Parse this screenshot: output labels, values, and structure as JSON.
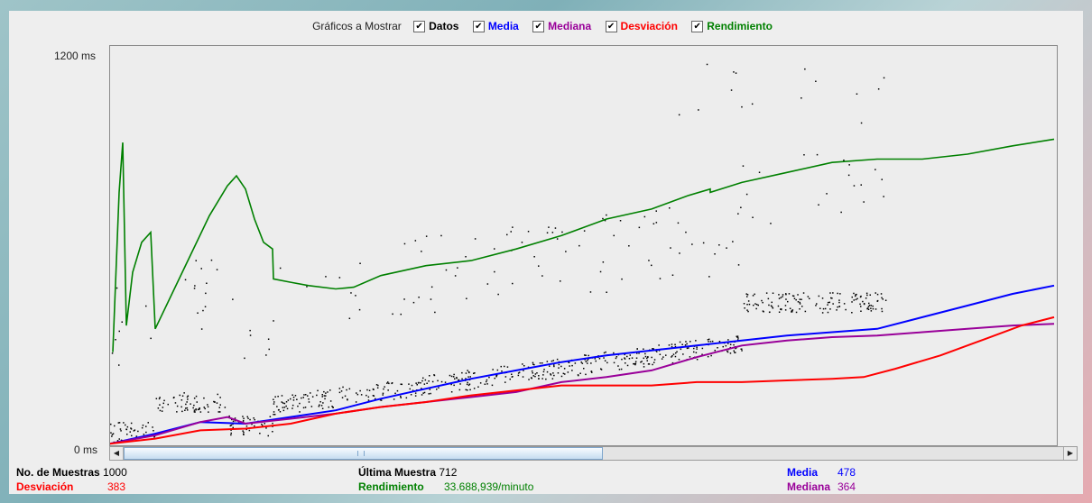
{
  "legend": {
    "title": "Gráficos a Mostrar",
    "items": [
      {
        "label": "Datos",
        "color": "#000000",
        "checked": true
      },
      {
        "label": "Media",
        "color": "#0000ff",
        "checked": true
      },
      {
        "label": "Mediana",
        "color": "#990099",
        "checked": true
      },
      {
        "label": "Desviación",
        "color": "#ff0000",
        "checked": true
      },
      {
        "label": "Rendimiento",
        "color": "#008000",
        "checked": true
      }
    ]
  },
  "axis": {
    "y_max_label": "1200  ms",
    "y_min_label": "0  ms"
  },
  "stats": {
    "samples_label": "No. de Muestras",
    "samples_value": "1000",
    "last_label": "Última Muestra",
    "last_value": "712",
    "mean_label": "Media",
    "mean_value": "478",
    "dev_label": "Desviación",
    "dev_value": "383",
    "throughput_label": "Rendimiento",
    "throughput_value": "33.688,939/minuto",
    "median_label": "Mediana",
    "median_value": "364"
  },
  "chart_data": {
    "type": "line",
    "ylim": [
      0,
      1200
    ],
    "series": [
      {
        "name": "Media",
        "color": "#0000ff",
        "points": [
          [
            0,
            5
          ],
          [
            50,
            35
          ],
          [
            100,
            70
          ],
          [
            150,
            65
          ],
          [
            200,
            85
          ],
          [
            250,
            105
          ],
          [
            300,
            140
          ],
          [
            350,
            170
          ],
          [
            400,
            200
          ],
          [
            450,
            225
          ],
          [
            500,
            250
          ],
          [
            550,
            270
          ],
          [
            600,
            285
          ],
          [
            650,
            300
          ],
          [
            700,
            315
          ],
          [
            750,
            330
          ],
          [
            800,
            340
          ],
          [
            850,
            350
          ],
          [
            900,
            385
          ],
          [
            950,
            420
          ],
          [
            1000,
            455
          ],
          [
            1046,
            480
          ]
        ]
      },
      {
        "name": "Mediana",
        "color": "#990099",
        "points": [
          [
            0,
            5
          ],
          [
            50,
            30
          ],
          [
            100,
            70
          ],
          [
            130,
            85
          ],
          [
            150,
            65
          ],
          [
            200,
            80
          ],
          [
            250,
            95
          ],
          [
            300,
            115
          ],
          [
            350,
            130
          ],
          [
            400,
            145
          ],
          [
            450,
            160
          ],
          [
            500,
            190
          ],
          [
            550,
            205
          ],
          [
            600,
            225
          ],
          [
            650,
            265
          ],
          [
            700,
            300
          ],
          [
            750,
            315
          ],
          [
            800,
            325
          ],
          [
            850,
            330
          ],
          [
            900,
            340
          ],
          [
            950,
            350
          ],
          [
            1000,
            360
          ],
          [
            1046,
            365
          ]
        ]
      },
      {
        "name": "Desviación",
        "color": "#ff0000",
        "points": [
          [
            0,
            5
          ],
          [
            50,
            20
          ],
          [
            100,
            45
          ],
          [
            150,
            50
          ],
          [
            200,
            65
          ],
          [
            250,
            95
          ],
          [
            300,
            115
          ],
          [
            350,
            130
          ],
          [
            400,
            150
          ],
          [
            450,
            165
          ],
          [
            500,
            180
          ],
          [
            550,
            180
          ],
          [
            600,
            180
          ],
          [
            650,
            190
          ],
          [
            700,
            190
          ],
          [
            750,
            195
          ],
          [
            800,
            200
          ],
          [
            835,
            205
          ],
          [
            870,
            230
          ],
          [
            920,
            270
          ],
          [
            970,
            320
          ],
          [
            1010,
            360
          ],
          [
            1046,
            385
          ]
        ]
      },
      {
        "name": "Rendimiento",
        "color": "#008000",
        "points": [
          [
            3,
            280
          ],
          [
            10,
            760
          ],
          [
            14,
            910
          ],
          [
            18,
            360
          ],
          [
            25,
            520
          ],
          [
            35,
            610
          ],
          [
            45,
            640
          ],
          [
            50,
            350
          ],
          [
            80,
            520
          ],
          [
            110,
            690
          ],
          [
            130,
            780
          ],
          [
            140,
            810
          ],
          [
            150,
            770
          ],
          [
            160,
            680
          ],
          [
            170,
            610
          ],
          [
            180,
            590
          ],
          [
            181,
            500
          ],
          [
            200,
            490
          ],
          [
            220,
            480
          ],
          [
            250,
            470
          ],
          [
            270,
            475
          ],
          [
            300,
            510
          ],
          [
            350,
            540
          ],
          [
            400,
            555
          ],
          [
            450,
            590
          ],
          [
            500,
            630
          ],
          [
            550,
            680
          ],
          [
            600,
            710
          ],
          [
            640,
            750
          ],
          [
            665,
            770
          ],
          [
            665,
            760
          ],
          [
            700,
            790
          ],
          [
            750,
            820
          ],
          [
            800,
            850
          ],
          [
            850,
            860
          ],
          [
            900,
            860
          ],
          [
            950,
            875
          ],
          [
            1000,
            900
          ],
          [
            1046,
            920
          ]
        ]
      }
    ]
  }
}
